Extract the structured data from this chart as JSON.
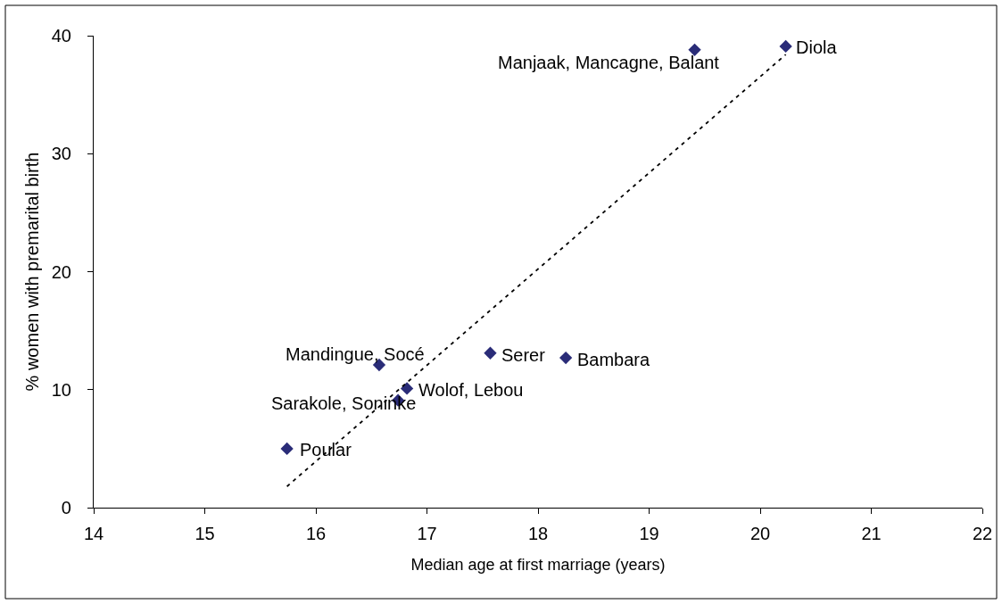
{
  "chart_data": {
    "type": "scatter",
    "xlabel": "Median age at first marriage (years)",
    "ylabel": "% women with premarital birth",
    "xlim": [
      14,
      22
    ],
    "xticks": [
      14,
      15,
      16,
      17,
      18,
      19,
      20,
      21,
      22
    ],
    "ylim": [
      0,
      40
    ],
    "yticks": [
      0,
      10,
      20,
      30,
      40
    ],
    "grid": false,
    "marker": "diamond",
    "series": [
      {
        "color": "#2a2c78",
        "x": [
          15.74,
          16.57,
          16.74,
          16.82,
          17.57,
          18.25,
          19.41,
          20.23
        ],
        "values": [
          5.0,
          12.1,
          9.1,
          10.1,
          13.1,
          12.7,
          38.8,
          39.1
        ]
      },
      {
        "type": "line",
        "color": "#000000",
        "line_style": "dotted",
        "marker": "none",
        "x": [
          15.74,
          20.23
        ],
        "values": [
          1.8,
          38.4
        ]
      }
    ],
    "annotations": [
      {
        "text": "Poular",
        "x": 15.74,
        "y": 5.0
      },
      {
        "text": "Mandingue, Socé",
        "x": 16.57,
        "y": 12.1
      },
      {
        "text": "Sarakole, Soninke",
        "x": 16.74,
        "y": 9.1
      },
      {
        "text": "Wolof, Lebou",
        "x": 16.82,
        "y": 10.1
      },
      {
        "text": "Serer",
        "x": 17.57,
        "y": 13.1
      },
      {
        "text": "Bambara",
        "x": 18.25,
        "y": 12.7
      },
      {
        "text": "Manjaak, Mancagne, Balant",
        "x": 19.41,
        "y": 38.8
      },
      {
        "text": "Diola",
        "x": 20.23,
        "y": 39.1
      }
    ]
  }
}
